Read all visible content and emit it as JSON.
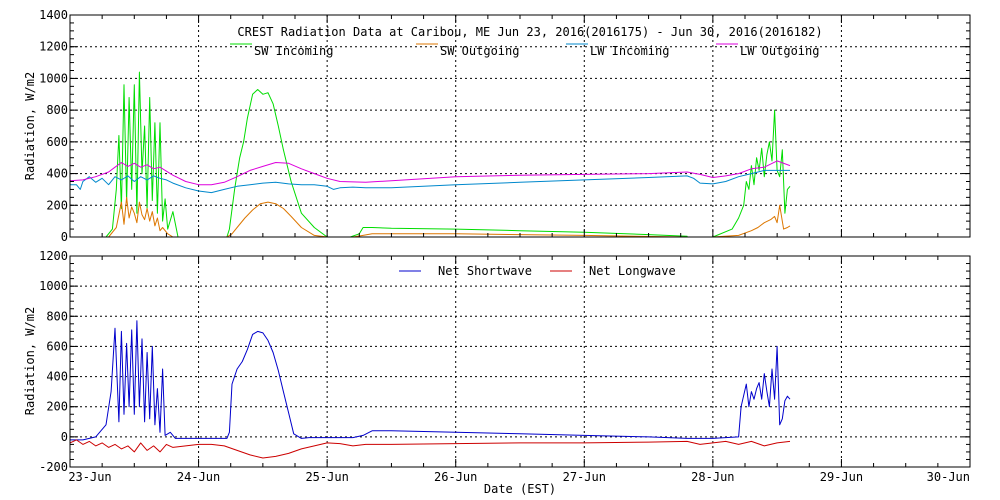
{
  "chart_data": [
    {
      "type": "line",
      "title": "CREST Radiation Data at Caribou, ME   Jun 23, 2016(2016175) - Jun 30, 2016(2016182)",
      "xlabel": "",
      "ylabel": "Radiation, W/m2",
      "ylim": [
        0,
        1400
      ],
      "yticks": [
        0,
        200,
        400,
        600,
        800,
        1000,
        1200,
        1400
      ],
      "xlim": [
        0,
        7
      ],
      "xticks": [
        0,
        1,
        2,
        3,
        4,
        5,
        6,
        7
      ],
      "grid": true,
      "legend": "top",
      "series": [
        {
          "name": "SW Incoming",
          "color": "#00dd00",
          "x": [
            0,
            0.28,
            0.33,
            0.36,
            0.38,
            0.4,
            0.42,
            0.44,
            0.46,
            0.48,
            0.5,
            0.52,
            0.54,
            0.56,
            0.58,
            0.6,
            0.62,
            0.64,
            0.66,
            0.68,
            0.7,
            0.72,
            0.74,
            0.76,
            0.8,
            0.84,
            1.0,
            1.22,
            1.24,
            1.28,
            1.3,
            1.32,
            1.35,
            1.38,
            1.42,
            1.46,
            1.5,
            1.54,
            1.58,
            1.62,
            1.66,
            1.72,
            1.8,
            1.9,
            2.0,
            2.1,
            2.18,
            2.25,
            2.28,
            2.35,
            2.5,
            3.0,
            3.5,
            4.0,
            4.5,
            4.8,
            4.8,
            5.0,
            5.15,
            5.2,
            5.24,
            5.26,
            5.28,
            5.3,
            5.32,
            5.34,
            5.36,
            5.38,
            5.4,
            5.42,
            5.44,
            5.46,
            5.48,
            5.5,
            5.52,
            5.54,
            5.56,
            5.58,
            5.6
          ],
          "y": [
            0,
            0,
            50,
            300,
            640,
            180,
            960,
            220,
            880,
            300,
            960,
            150,
            1040,
            400,
            700,
            180,
            880,
            230,
            720,
            150,
            720,
            100,
            240,
            50,
            160,
            0,
            0,
            0,
            50,
            300,
            400,
            500,
            600,
            750,
            900,
            930,
            900,
            910,
            840,
            700,
            550,
            350,
            150,
            60,
            0,
            0,
            0,
            20,
            60,
            60,
            55,
            50,
            40,
            30,
            15,
            5,
            0,
            0,
            50,
            120,
            200,
            350,
            300,
            450,
            330,
            500,
            420,
            560,
            380,
            520,
            600,
            480,
            800,
            420,
            380,
            550,
            150,
            300,
            320
          ]
        },
        {
          "name": "SW Outgoing",
          "color": "#dd7700",
          "x": [
            0,
            0.3,
            0.36,
            0.4,
            0.42,
            0.44,
            0.46,
            0.48,
            0.5,
            0.52,
            0.54,
            0.56,
            0.58,
            0.6,
            0.62,
            0.64,
            0.66,
            0.68,
            0.7,
            0.72,
            0.76,
            0.8,
            1.0,
            1.22,
            1.26,
            1.3,
            1.36,
            1.42,
            1.48,
            1.54,
            1.6,
            1.66,
            1.72,
            1.8,
            1.9,
            2.0,
            2.2,
            2.28,
            2.35,
            3.0,
            4.0,
            4.8,
            4.8,
            5.0,
            5.2,
            5.3,
            5.35,
            5.4,
            5.45,
            5.48,
            5.5,
            5.52,
            5.55,
            5.58,
            5.6
          ],
          "y": [
            0,
            0,
            60,
            220,
            80,
            250,
            120,
            190,
            150,
            90,
            220,
            140,
            110,
            180,
            100,
            160,
            70,
            120,
            40,
            60,
            20,
            0,
            0,
            0,
            20,
            60,
            120,
            170,
            210,
            220,
            210,
            180,
            130,
            60,
            10,
            0,
            0,
            10,
            20,
            20,
            10,
            0,
            0,
            0,
            10,
            40,
            60,
            90,
            110,
            130,
            90,
            200,
            50,
            60,
            70
          ]
        },
        {
          "name": "LW Incoming",
          "color": "#0088cc",
          "x": [
            0,
            0.05,
            0.08,
            0.1,
            0.15,
            0.2,
            0.25,
            0.3,
            0.35,
            0.4,
            0.45,
            0.5,
            0.55,
            0.6,
            0.65,
            0.7,
            0.75,
            0.8,
            0.9,
            1.0,
            1.1,
            1.2,
            1.3,
            1.4,
            1.5,
            1.6,
            1.7,
            1.8,
            1.9,
            2.0,
            2.05,
            2.1,
            2.2,
            2.3,
            2.5,
            3.0,
            3.5,
            4.0,
            4.5,
            4.8,
            4.85,
            4.9,
            5.0,
            5.1,
            5.2,
            5.3,
            5.4,
            5.5,
            5.6
          ],
          "y": [
            330,
            330,
            300,
            350,
            380,
            345,
            370,
            330,
            380,
            360,
            385,
            350,
            380,
            360,
            385,
            370,
            360,
            340,
            310,
            290,
            280,
            300,
            320,
            330,
            340,
            345,
            335,
            330,
            330,
            320,
            300,
            310,
            315,
            310,
            310,
            330,
            345,
            360,
            375,
            385,
            370,
            340,
            335,
            350,
            380,
            400,
            420,
            420,
            420
          ]
        },
        {
          "name": "LW Outgoing",
          "color": "#dd00dd",
          "x": [
            0,
            0.1,
            0.2,
            0.3,
            0.35,
            0.4,
            0.45,
            0.5,
            0.55,
            0.6,
            0.65,
            0.7,
            0.8,
            0.9,
            1.0,
            1.1,
            1.2,
            1.3,
            1.4,
            1.5,
            1.6,
            1.7,
            1.8,
            1.9,
            2.0,
            2.1,
            2.3,
            2.5,
            3.0,
            3.5,
            4.0,
            4.5,
            4.8,
            4.9,
            5.0,
            5.1,
            5.2,
            5.3,
            5.4,
            5.5,
            5.6
          ],
          "y": [
            355,
            360,
            380,
            410,
            440,
            470,
            445,
            465,
            440,
            455,
            430,
            440,
            390,
            350,
            330,
            330,
            345,
            380,
            420,
            445,
            470,
            465,
            430,
            400,
            370,
            350,
            345,
            355,
            380,
            390,
            395,
            400,
            410,
            395,
            375,
            385,
            400,
            430,
            440,
            480,
            450
          ]
        }
      ]
    },
    {
      "type": "line",
      "title": "",
      "xlabel": "Date (EST)",
      "ylabel": "Radiation, W/m2",
      "ylim": [
        -200,
        1200
      ],
      "yticks": [
        -200,
        0,
        200,
        400,
        600,
        800,
        1000,
        1200
      ],
      "xlim": [
        0,
        7
      ],
      "xticks": [
        0,
        1,
        2,
        3,
        4,
        5,
        6,
        7
      ],
      "categories": [
        "23-Jun",
        "24-Jun",
        "25-Jun",
        "26-Jun",
        "27-Jun",
        "28-Jun",
        "29-Jun",
        "30-Jun"
      ],
      "grid": true,
      "legend": "top",
      "series": [
        {
          "name": "Net Shortwave",
          "color": "#0000cc",
          "x": [
            0,
            0.1,
            0.2,
            0.28,
            0.32,
            0.35,
            0.38,
            0.4,
            0.42,
            0.44,
            0.46,
            0.48,
            0.5,
            0.52,
            0.54,
            0.56,
            0.58,
            0.6,
            0.62,
            0.64,
            0.66,
            0.68,
            0.7,
            0.72,
            0.74,
            0.78,
            0.82,
            0.9,
            1.0,
            1.22,
            1.24,
            1.26,
            1.3,
            1.34,
            1.38,
            1.42,
            1.46,
            1.5,
            1.54,
            1.58,
            1.62,
            1.66,
            1.7,
            1.74,
            1.8,
            1.86,
            2.0,
            2.2,
            2.28,
            2.35,
            2.5,
            3.0,
            3.5,
            4.0,
            4.5,
            4.8,
            4.8,
            5.0,
            5.2,
            5.22,
            5.26,
            5.28,
            5.3,
            5.32,
            5.34,
            5.36,
            5.38,
            5.4,
            5.42,
            5.44,
            5.46,
            5.48,
            5.5,
            5.52,
            5.54,
            5.56,
            5.58,
            5.6
          ],
          "y": [
            -20,
            -20,
            0,
            80,
            300,
            720,
            100,
            700,
            150,
            620,
            200,
            710,
            150,
            770,
            200,
            650,
            100,
            560,
            120,
            600,
            80,
            320,
            30,
            450,
            10,
            30,
            -10,
            -10,
            -10,
            -10,
            30,
            350,
            450,
            500,
            580,
            680,
            700,
            690,
            640,
            560,
            440,
            300,
            160,
            20,
            -10,
            -5,
            -5,
            -5,
            10,
            40,
            40,
            30,
            20,
            10,
            0,
            -10,
            -10,
            -10,
            0,
            200,
            350,
            200,
            300,
            250,
            320,
            360,
            250,
            420,
            300,
            200,
            450,
            250,
            600,
            80,
            120,
            240,
            270,
            250
          ]
        },
        {
          "name": "Net Longwave",
          "color": "#cc0000",
          "x": [
            0,
            0.05,
            0.1,
            0.15,
            0.2,
            0.25,
            0.3,
            0.35,
            0.4,
            0.45,
            0.5,
            0.55,
            0.6,
            0.65,
            0.7,
            0.75,
            0.8,
            0.9,
            1.0,
            1.1,
            1.2,
            1.3,
            1.4,
            1.5,
            1.6,
            1.7,
            1.8,
            1.9,
            2.0,
            2.1,
            2.2,
            2.3,
            2.5,
            3.0,
            3.5,
            4.0,
            4.5,
            4.8,
            4.9,
            5.0,
            5.1,
            5.2,
            5.3,
            5.4,
            5.5,
            5.6
          ],
          "y": [
            -40,
            -20,
            -50,
            -30,
            -60,
            -40,
            -70,
            -50,
            -80,
            -60,
            -100,
            -40,
            -90,
            -60,
            -100,
            -50,
            -70,
            -60,
            -50,
            -50,
            -60,
            -90,
            -120,
            -140,
            -130,
            -110,
            -80,
            -60,
            -40,
            -45,
            -60,
            -50,
            -50,
            -45,
            -40,
            -40,
            -35,
            -30,
            -50,
            -40,
            -30,
            -50,
            -30,
            -60,
            -40,
            -30
          ]
        }
      ]
    }
  ]
}
